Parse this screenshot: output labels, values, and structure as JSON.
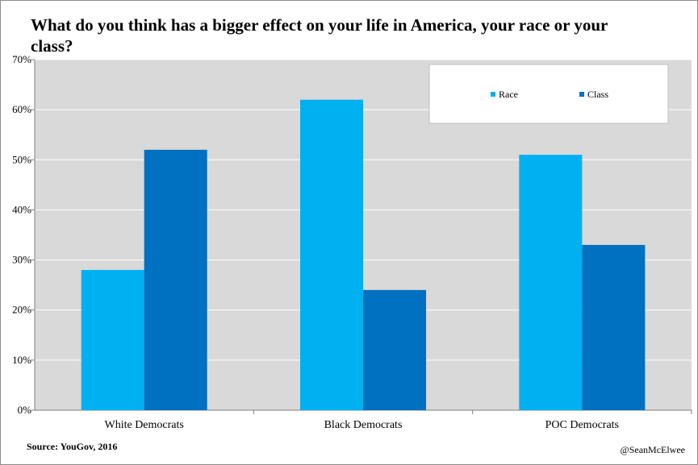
{
  "title": "What do you think has a bigger effect on your life in America, your race or your class?",
  "source": "Source: YouGov, 2016",
  "credit": "@SeanMcElwee",
  "colors": {
    "race": "#00b0f0",
    "class": "#0070c0",
    "plot_bg": "#d9d9d9",
    "grid": "#ffffff"
  },
  "chart_data": {
    "type": "bar",
    "title": "What do you think has a bigger effect on your life in America, your race or your class?",
    "xlabel": "",
    "ylabel": "",
    "categories": [
      "White Democrats",
      "Black Democrats",
      "POC Democrats"
    ],
    "series": [
      {
        "name": "Race",
        "values": [
          28,
          62,
          51
        ]
      },
      {
        "name": "Class",
        "values": [
          52,
          24,
          33
        ]
      }
    ],
    "ylim": [
      0,
      70
    ],
    "yticks": [
      "0%",
      "10%",
      "20%",
      "30%",
      "40%",
      "50%",
      "60%",
      "70%"
    ],
    "grid": true,
    "legend": "top-right"
  }
}
